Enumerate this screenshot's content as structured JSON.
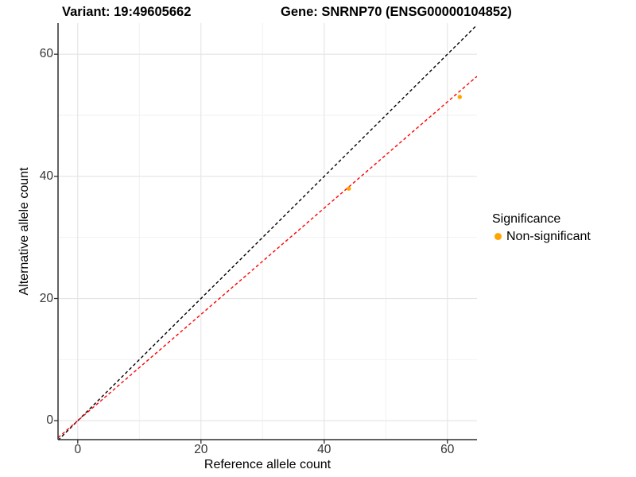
{
  "title": {
    "variant": "Variant: 19:49605662",
    "gene": "Gene: SNRNP70 (ENSG00000104852)"
  },
  "legend": {
    "title": "Significance",
    "items": [
      {
        "label": "Non-significant",
        "color": "#FFA500"
      }
    ]
  },
  "colors": {
    "background": "#ffffff",
    "axis": "#2e2e2e",
    "tick_text": "#333333",
    "grid_major": "#e4e4e4",
    "grid_minor": "#f2f2f2",
    "point": "#FFA500",
    "identity_line": "#000000",
    "fit_line": "#ff0000"
  },
  "chart_data": {
    "type": "scatter",
    "title": "Variant: 19:49605662    Gene: SNRNP70 (ENSG00000104852)",
    "xlabel": "Reference allele count",
    "ylabel": "Alternative allele count",
    "xlim": [
      -3.2,
      64.8
    ],
    "ylim": [
      -3.1,
      65.1
    ],
    "x_ticks": [
      0,
      20,
      40,
      60
    ],
    "y_ticks": [
      0,
      20,
      40,
      60
    ],
    "x_minor": [
      10,
      30,
      50
    ],
    "y_minor": [
      10,
      30,
      50
    ],
    "grid": true,
    "legend_position": "right",
    "series": [
      {
        "name": "Non-significant",
        "color": "#FFA500",
        "points": [
          {
            "x": 44,
            "y": 38
          },
          {
            "x": 62,
            "y": 53
          }
        ]
      }
    ],
    "lines": [
      {
        "name": "identity-line",
        "slope": 1,
        "intercept": 0,
        "color": "#000000",
        "style": "dashed"
      },
      {
        "name": "fit-line",
        "slope": 0.87,
        "intercept": 0,
        "color": "#ff0000",
        "style": "dashed"
      }
    ]
  }
}
